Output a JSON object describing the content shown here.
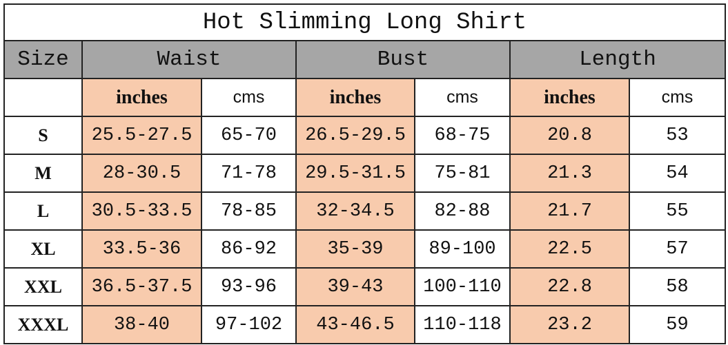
{
  "title": "Hot Slimming Long Shirt",
  "header": [
    "Size",
    "Waist",
    "Bust",
    "Length"
  ],
  "units": [
    "inches",
    "cms",
    "inches",
    "cms",
    "inches",
    "cms"
  ],
  "rows": [
    [
      "S",
      "25.5-27.5",
      "65-70",
      "26.5-29.5",
      "68-75",
      "20.8",
      "53"
    ],
    [
      "M",
      "28-30.5",
      "71-78",
      "29.5-31.5",
      "75-81",
      "21.3",
      "54"
    ],
    [
      "L",
      "30.5-33.5",
      "78-85",
      "32-34.5",
      "82-88",
      "21.7",
      "55"
    ],
    [
      "XL",
      "33.5-36",
      "86-92",
      "35-39",
      "89-100",
      "22.5",
      "57"
    ],
    [
      "XXL",
      "36.5-37.5",
      "93-96",
      "39-43",
      "100-110",
      "22.8",
      "58"
    ],
    [
      "XXXL",
      "38-40",
      "97-102",
      "43-46.5",
      "110-118",
      "23.2",
      "59"
    ]
  ]
}
